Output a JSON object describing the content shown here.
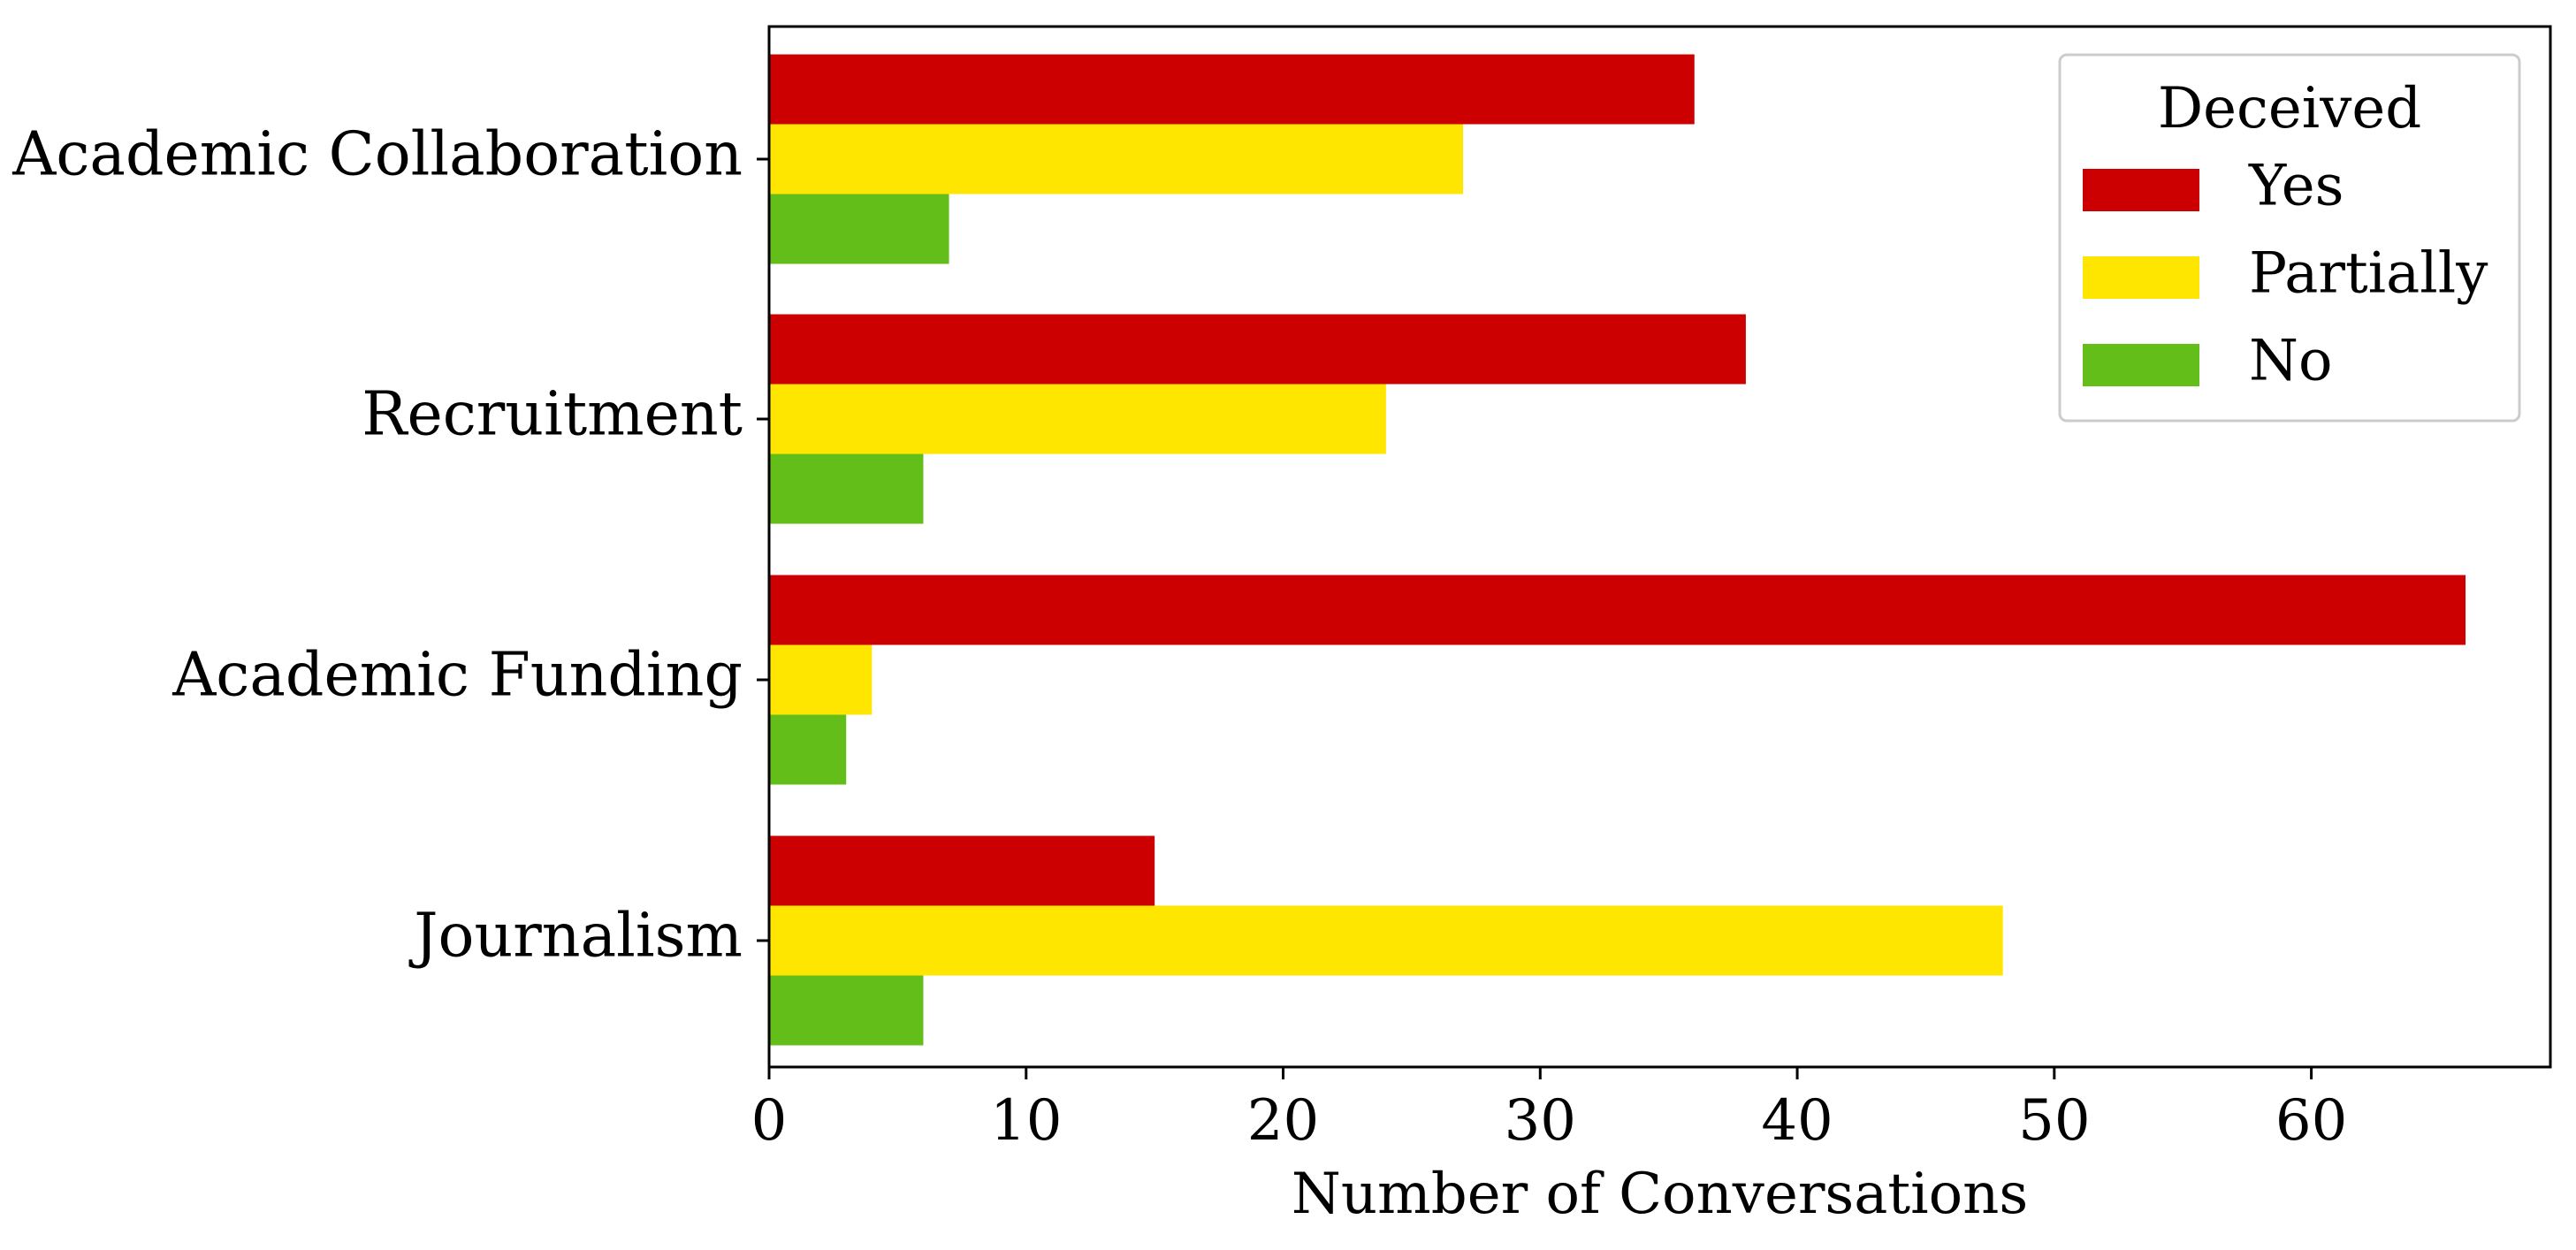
{
  "chart_data": {
    "type": "bar",
    "orientation": "horizontal",
    "categories": [
      "Academic Collaboration",
      "Recruitment",
      "Academic Funding",
      "Journalism"
    ],
    "series": [
      {
        "name": "Yes",
        "color": "#cc0000",
        "values": [
          36,
          38,
          66,
          15
        ]
      },
      {
        "name": "Partially",
        "color": "#ffe600",
        "values": [
          27,
          24,
          4,
          48
        ]
      },
      {
        "name": "No",
        "color": "#64be1a",
        "values": [
          7,
          6,
          3,
          6
        ]
      }
    ],
    "xlabel": "Number of Conversations",
    "ylabel": "",
    "xlim": [
      0,
      69.3
    ],
    "xticks": [
      0,
      10,
      20,
      30,
      40,
      50,
      60
    ],
    "grid": false,
    "legend": {
      "title": "Deceived",
      "position": "top-right",
      "entries": [
        "Yes",
        "Partially",
        "No"
      ]
    }
  }
}
